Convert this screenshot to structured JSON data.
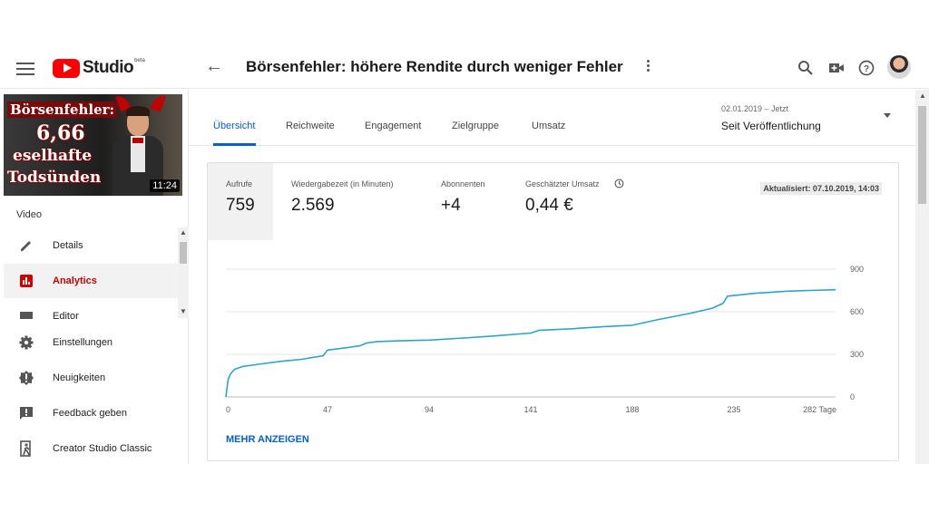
{
  "header": {
    "studio_label": "Studio",
    "beta_label": "beta",
    "back_icon": "arrow-left-icon",
    "video_title": "Börsenfehler: höhere Rendite durch weniger Fehler"
  },
  "sidebar": {
    "thumbnail": {
      "line1": "Börsenfehler:",
      "line2": "6,66",
      "line3": "eselhafte",
      "line4": "Todsünden",
      "duration": "11:24"
    },
    "section_label": "Video",
    "items": [
      {
        "label": "Details",
        "icon": "pencil-icon"
      },
      {
        "label": "Analytics",
        "icon": "analytics-icon",
        "active": true
      },
      {
        "label": "Editor",
        "icon": "film-icon"
      },
      {
        "label": "Einstellungen",
        "icon": "gear-icon"
      },
      {
        "label": "Neuigkeiten",
        "icon": "alert-badge-icon"
      },
      {
        "label": "Feedback geben",
        "icon": "feedback-icon"
      },
      {
        "label": "Creator Studio Classic",
        "icon": "exit-classic-icon"
      }
    ]
  },
  "tabs": [
    "Übersicht",
    "Reichweite",
    "Engagement",
    "Zielgruppe",
    "Umsatz"
  ],
  "date_range": {
    "sub": "02.01.2019 – Jetzt",
    "main": "Seit Veröffentlichung"
  },
  "metrics": [
    {
      "title": "Aufrufe",
      "value": "759"
    },
    {
      "title": "Wiedergabezeit (in Minuten)",
      "value": "2.569"
    },
    {
      "title": "Abonnenten",
      "value": "+4"
    },
    {
      "title": "Geschätzter Umsatz",
      "value": "0,44 €"
    }
  ],
  "updated": "Aktualisiert: 07.10.2019, 14:03",
  "more_label": "MEHR ANZEIGEN",
  "colors": {
    "accent": "#065fd4",
    "line": "#2fa3c9",
    "brand": "#ff0000",
    "active_nav": "#cc0000"
  },
  "chart_data": {
    "type": "line",
    "x_tick_labels": [
      "0",
      "47",
      "94",
      "141",
      "188",
      "235",
      "282 Tage"
    ],
    "y_tick_labels": [
      "0",
      "300",
      "600",
      "900"
    ],
    "xlim": [
      0,
      282
    ],
    "ylim": [
      0,
      900
    ],
    "grid": true,
    "series": [
      {
        "x": [
          0,
          1,
          2,
          4,
          8,
          15,
          25,
          35,
          45,
          47,
          55,
          62,
          65,
          70,
          80,
          94,
          110,
          125,
          141,
          145,
          160,
          175,
          188,
          200,
          215,
          225,
          230,
          232,
          245,
          260,
          270,
          282
        ],
        "y": [
          0,
          120,
          160,
          195,
          215,
          230,
          250,
          265,
          290,
          330,
          345,
          360,
          380,
          390,
          395,
          400,
          415,
          430,
          450,
          470,
          480,
          495,
          505,
          545,
          590,
          625,
          660,
          710,
          730,
          745,
          750,
          755
        ]
      }
    ]
  }
}
